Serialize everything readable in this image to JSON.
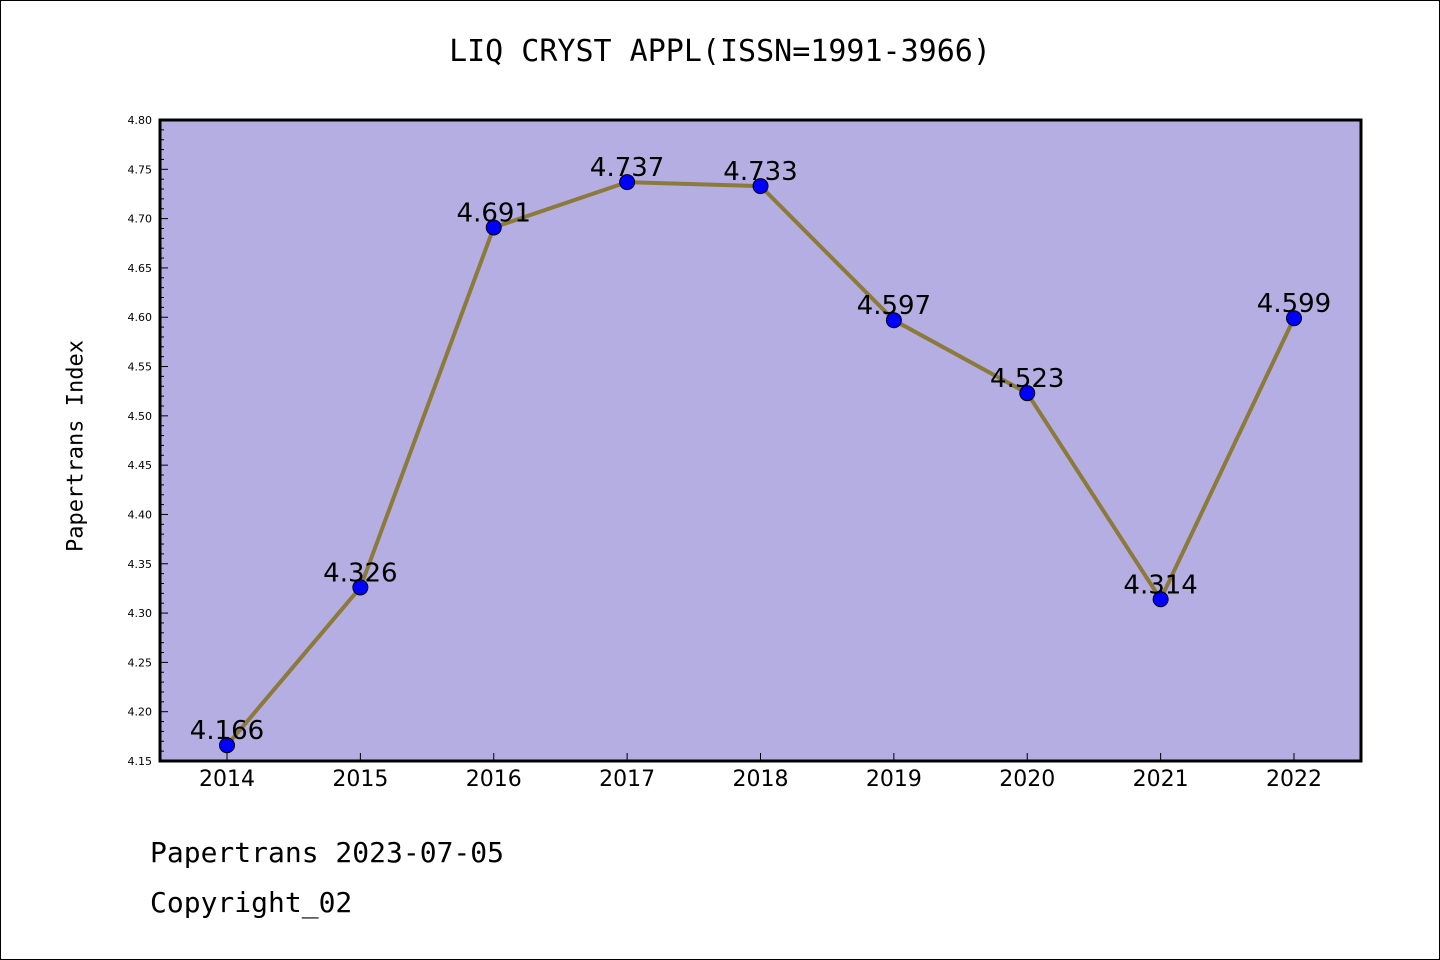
{
  "chart_data": {
    "type": "line",
    "title": "LIQ CRYST APPL(ISSN=1991-3966)",
    "xlabel": "",
    "ylabel": "Papertrans Index",
    "x": [
      "2014",
      "2015",
      "2016",
      "2017",
      "2018",
      "2019",
      "2020",
      "2021",
      "2022"
    ],
    "series": [
      {
        "values": [
          4.166,
          4.326,
          4.691,
          4.737,
          4.733,
          4.597,
          4.523,
          4.314,
          4.599
        ],
        "labels": [
          "4.166",
          "4.326",
          "4.691",
          "4.737",
          "4.733",
          "4.597",
          "4.523",
          "4.314",
          "4.599"
        ]
      }
    ],
    "ylim": [
      4.15,
      4.8
    ],
    "yticks": [
      "4.15",
      "4.20",
      "4.25",
      "4.30",
      "4.35",
      "4.40",
      "4.45",
      "4.50",
      "4.55",
      "4.60",
      "4.65",
      "4.70",
      "4.75",
      "4.80"
    ],
    "grid": false,
    "colors": {
      "plot_background": "#b5aee2",
      "line": "#8b7a3a",
      "marker": "#0000ff"
    }
  },
  "footer": {
    "line1": "Papertrans 2023-07-05",
    "line2": "Copyright_02"
  }
}
